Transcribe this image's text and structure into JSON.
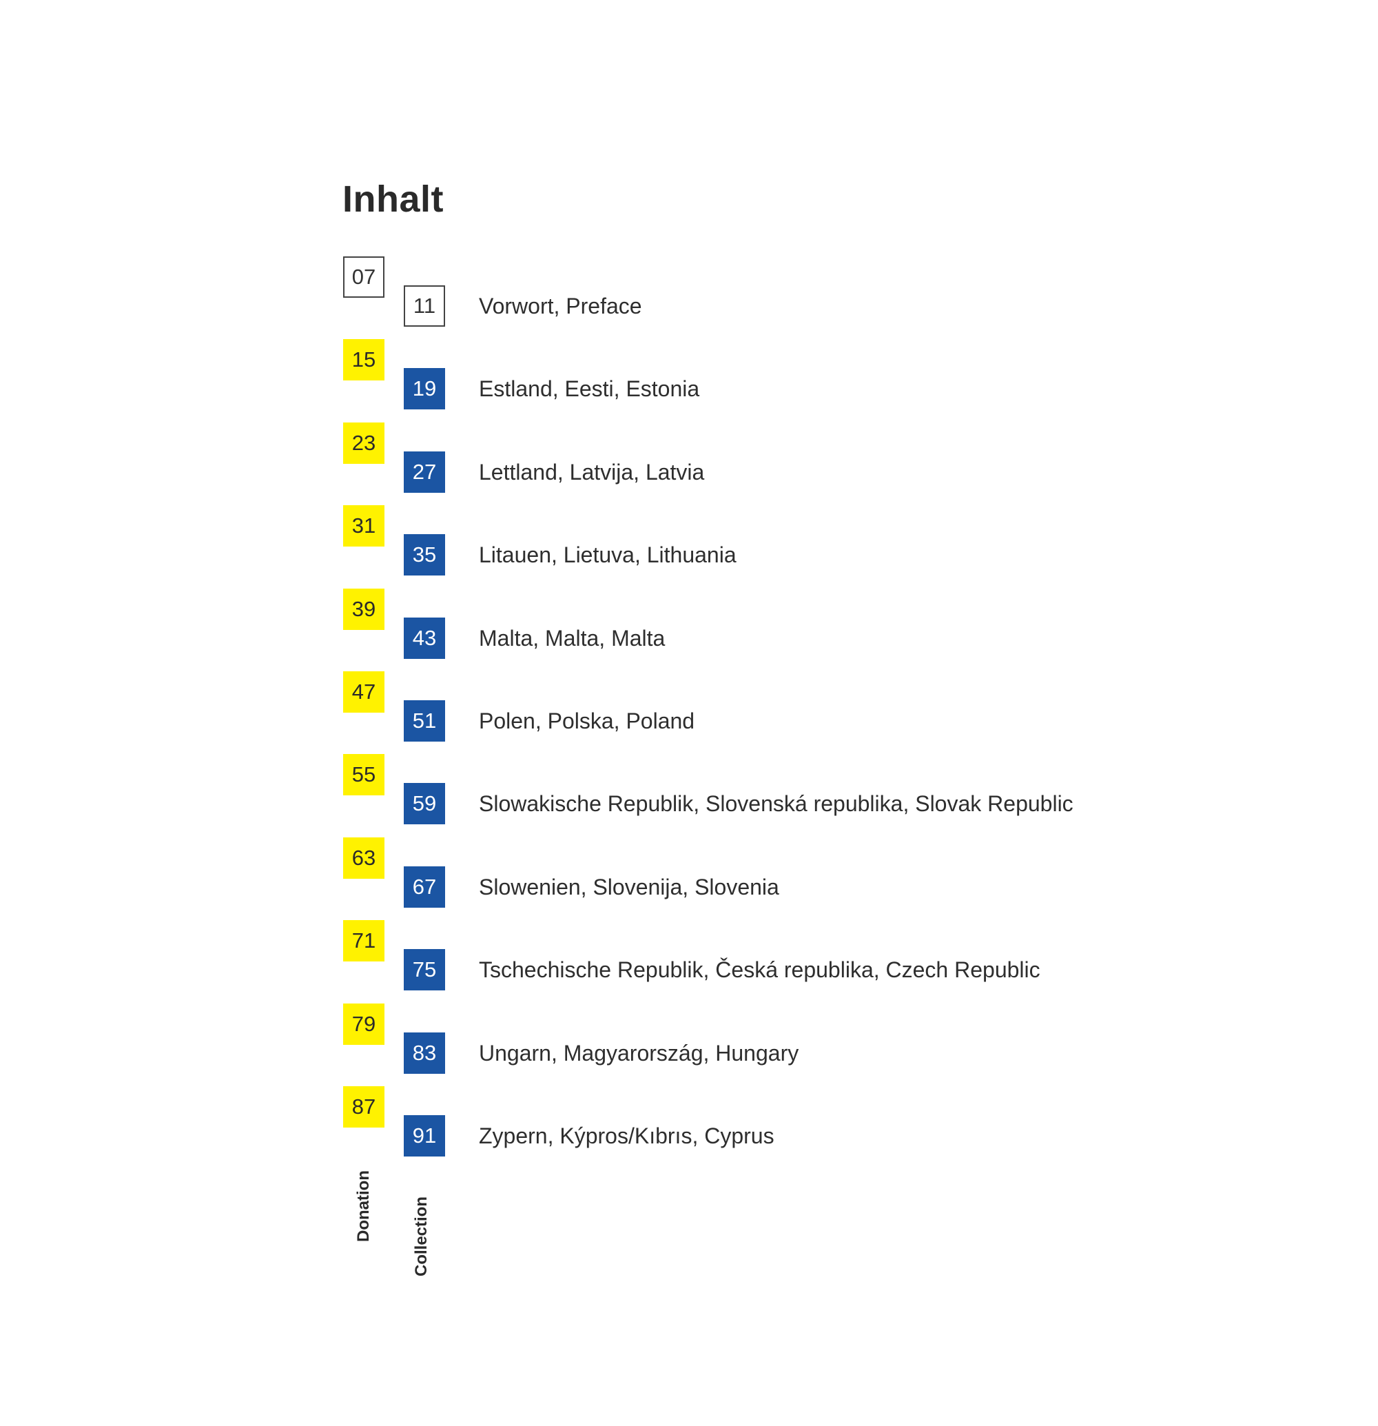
{
  "title": "Inhalt",
  "colors": {
    "donation": "#fff200",
    "collection": "#1b55a3"
  },
  "rows": [
    {
      "donation": "07",
      "collection": "11",
      "entry": "Vorwort, Preface",
      "style": "outline"
    },
    {
      "donation": "15",
      "collection": "19",
      "entry": "Estland, Eesti, Estonia",
      "style": "filled"
    },
    {
      "donation": "23",
      "collection": "27",
      "entry": "Lettland, Latvija, Latvia",
      "style": "filled"
    },
    {
      "donation": "31",
      "collection": "35",
      "entry": "Litauen, Lietuva, Lithuania",
      "style": "filled"
    },
    {
      "donation": "39",
      "collection": "43",
      "entry": "Malta, Malta, Malta",
      "style": "filled"
    },
    {
      "donation": "47",
      "collection": "51",
      "entry": "Polen, Polska, Poland",
      "style": "filled"
    },
    {
      "donation": "55",
      "collection": "59",
      "entry": "Slowakische Republik, Slovenská republika, Slovak Republic",
      "style": "filled"
    },
    {
      "donation": "63",
      "collection": "67",
      "entry": "Slowenien, Slovenija, Slovenia",
      "style": "filled"
    },
    {
      "donation": "71",
      "collection": "75",
      "entry": "Tschechische Republik, Česká republika, Czech Republic",
      "style": "filled"
    },
    {
      "donation": "79",
      "collection": "83",
      "entry": "Ungarn, Magyarország, Hungary",
      "style": "filled"
    },
    {
      "donation": "87",
      "collection": "91",
      "entry": "Zypern, Kýpros/Kıbrıs, Cyprus",
      "style": "filled"
    }
  ],
  "column_labels": {
    "donation": "Donation",
    "collection": "Collection"
  }
}
